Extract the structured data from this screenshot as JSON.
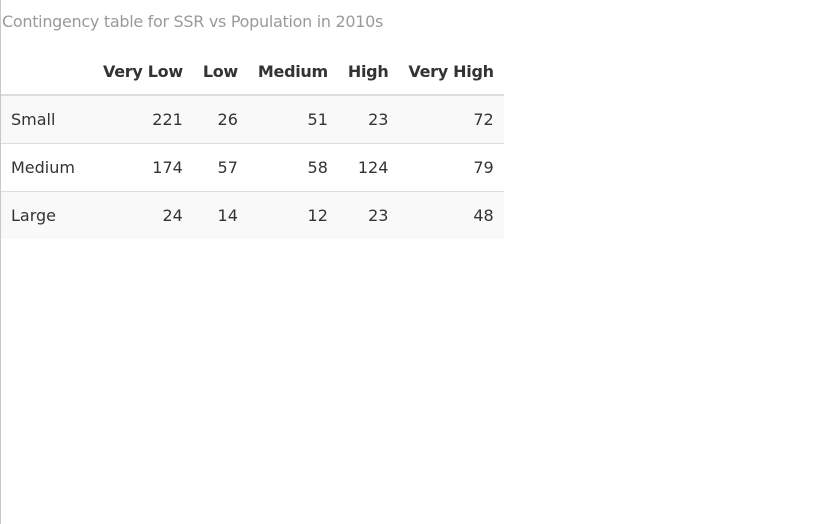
{
  "caption": "Contingency table for SSR vs Population in 2010s",
  "table": {
    "columns": [
      "Very Low",
      "Low",
      "Medium",
      "High",
      "Very High"
    ],
    "rows": [
      {
        "label": "Small",
        "values": [
          "221",
          "26",
          "51",
          "23",
          "72"
        ]
      },
      {
        "label": "Medium",
        "values": [
          "174",
          "57",
          "58",
          "124",
          "79"
        ]
      },
      {
        "label": "Large",
        "values": [
          "24",
          "14",
          "12",
          "23",
          "48"
        ]
      }
    ]
  },
  "colors": {
    "caption": "#9a9a9a",
    "text": "#333333",
    "stripe": "#f9f9f9",
    "border": "#dddddd"
  }
}
